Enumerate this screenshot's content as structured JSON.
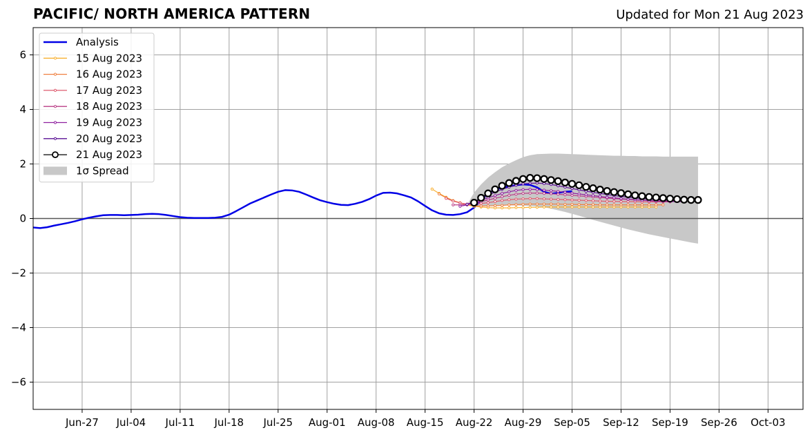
{
  "header": {
    "title": "PACIFIC/ NORTH AMERICA PATTERN",
    "updated": "Updated for Mon 21 Aug 2023"
  },
  "chart_data": {
    "type": "line",
    "title": "PACIFIC/ NORTH AMERICA PATTERN",
    "subtitle": "Updated for Mon 21 Aug 2023",
    "xlabel": "",
    "ylabel": "",
    "xlim": [
      "2023-06-20",
      "2023-10-08"
    ],
    "ylim": [
      -7,
      7
    ],
    "grid": true,
    "legend_position": "top-left",
    "x_ticks": [
      "Jun-27",
      "Jul-04",
      "Jul-11",
      "Jul-18",
      "Jul-25",
      "Aug-01",
      "Aug-08",
      "Aug-15",
      "Aug-22",
      "Aug-29",
      "Sep-05",
      "Sep-12",
      "Sep-19",
      "Sep-26",
      "Oct-03"
    ],
    "y_ticks": [
      "6",
      "4",
      "2",
      "0",
      "−2",
      "−4",
      "−6"
    ],
    "analysis": {
      "name": "Analysis",
      "color": "#0000e6",
      "start": "2023-06-20",
      "values": [
        -0.33,
        -0.35,
        -0.32,
        -0.26,
        -0.21,
        -0.16,
        -0.1,
        -0.03,
        0.03,
        0.08,
        0.12,
        0.13,
        0.13,
        0.12,
        0.13,
        0.14,
        0.16,
        0.17,
        0.16,
        0.13,
        0.09,
        0.05,
        0.03,
        0.02,
        0.02,
        0.02,
        0.03,
        0.06,
        0.14,
        0.27,
        0.41,
        0.55,
        0.66,
        0.77,
        0.88,
        0.98,
        1.04,
        1.03,
        0.98,
        0.88,
        0.77,
        0.67,
        0.6,
        0.54,
        0.5,
        0.49,
        0.54,
        0.61,
        0.71,
        0.84,
        0.94,
        0.95,
        0.92,
        0.85,
        0.77,
        0.63,
        0.46,
        0.3,
        0.19,
        0.14,
        0.13,
        0.16,
        0.23,
        0.4,
        0.66,
        0.92,
        1.06,
        1.13,
        1.18,
        1.22,
        1.25,
        1.23,
        1.14,
        0.98,
        0.91,
        0.94,
        0.98,
        1.0
      ]
    },
    "forecasts": [
      {
        "name": "15 Aug 2023",
        "color": "#f8b032",
        "start": "2023-08-16",
        "values": [
          1.08,
          0.92,
          0.78,
          0.66,
          0.58,
          0.5,
          0.45,
          0.42,
          0.4,
          0.39,
          0.39,
          0.39,
          0.4,
          0.4,
          0.41,
          0.41,
          0.42,
          0.42,
          0.42,
          0.42,
          0.42,
          0.42,
          0.42,
          0.42,
          0.42,
          0.42,
          0.42,
          0.42,
          0.42,
          0.42,
          0.42,
          0.42,
          0.42
        ]
      },
      {
        "name": "16 Aug 2023",
        "color": "#ef8040",
        "start": "2023-08-17",
        "values": [
          0.9,
          0.76,
          0.65,
          0.57,
          0.51,
          0.47,
          0.46,
          0.46,
          0.47,
          0.48,
          0.5,
          0.51,
          0.52,
          0.53,
          0.53,
          0.53,
          0.53,
          0.53,
          0.52,
          0.52,
          0.51,
          0.51,
          0.51,
          0.5,
          0.5,
          0.5,
          0.5,
          0.5,
          0.5,
          0.5,
          0.5,
          0.5,
          0.5
        ]
      },
      {
        "name": "17 Aug 2023",
        "color": "#de5a6e",
        "start": "2023-08-18",
        "values": [
          0.74,
          0.64,
          0.57,
          0.53,
          0.53,
          0.55,
          0.58,
          0.62,
          0.66,
          0.69,
          0.71,
          0.72,
          0.73,
          0.73,
          0.72,
          0.71,
          0.7,
          0.69,
          0.68,
          0.67,
          0.66,
          0.65,
          0.64,
          0.63,
          0.63,
          0.62,
          0.62,
          0.62,
          0.61,
          0.61,
          0.61,
          0.61,
          0.61
        ]
      },
      {
        "name": "18 Aug 2023",
        "color": "#ba3d86",
        "start": "2023-08-19",
        "values": [
          0.5,
          0.5,
          0.52,
          0.56,
          0.62,
          0.68,
          0.74,
          0.8,
          0.85,
          0.89,
          0.92,
          0.93,
          0.93,
          0.92,
          0.91,
          0.89,
          0.87,
          0.85,
          0.83,
          0.81,
          0.79,
          0.77,
          0.75,
          0.73,
          0.71,
          0.7,
          0.68,
          0.67,
          0.66,
          0.65,
          0.64,
          0.63,
          0.63
        ]
      },
      {
        "name": "19 Aug 2023",
        "color": "#8e1f9e",
        "start": "2023-08-20",
        "values": [
          0.45,
          0.5,
          0.58,
          0.67,
          0.76,
          0.84,
          0.92,
          0.98,
          1.03,
          1.06,
          1.07,
          1.06,
          1.04,
          1.02,
          0.99,
          0.96,
          0.93,
          0.9,
          0.87,
          0.84,
          0.81,
          0.78,
          0.76,
          0.73,
          0.71,
          0.69,
          0.67,
          0.65,
          0.64,
          0.63,
          0.62,
          0.62,
          0.62
        ]
      },
      {
        "name": "20 Aug 2023",
        "color": "#5a0f94",
        "start": "2023-08-21",
        "values": [
          0.52,
          0.62,
          0.74,
          0.86,
          0.97,
          1.07,
          1.15,
          1.22,
          1.27,
          1.29,
          1.3,
          1.28,
          1.25,
          1.2,
          1.15,
          1.1,
          1.05,
          1.0,
          0.96,
          0.92,
          0.88,
          0.84,
          0.81,
          0.78,
          0.75,
          0.73,
          0.71,
          0.69,
          0.68,
          0.67,
          0.66,
          0.66,
          0.66
        ]
      },
      {
        "name": "21 Aug 2023",
        "color": "#000000",
        "start": "2023-08-22",
        "values": [
          0.58,
          0.76,
          0.92,
          1.07,
          1.2,
          1.3,
          1.38,
          1.45,
          1.49,
          1.48,
          1.45,
          1.41,
          1.37,
          1.32,
          1.27,
          1.22,
          1.16,
          1.11,
          1.06,
          1.01,
          0.97,
          0.93,
          0.89,
          0.85,
          0.82,
          0.79,
          0.77,
          0.75,
          0.73,
          0.71,
          0.69,
          0.68,
          0.68
        ]
      }
    ],
    "spread": {
      "name": "1σ Spread",
      "color": "#c8c8c8",
      "start": "2023-08-21",
      "upper": [
        0.5,
        0.95,
        1.25,
        1.5,
        1.7,
        1.88,
        2.02,
        2.14,
        2.25,
        2.32,
        2.36,
        2.37,
        2.38,
        2.38,
        2.37,
        2.36,
        2.35,
        2.34,
        2.33,
        2.32,
        2.31,
        2.3,
        2.3,
        2.29,
        2.29,
        2.28,
        2.28,
        2.28,
        2.27,
        2.27,
        2.27,
        2.27,
        2.27,
        2.27
      ],
      "lower": [
        0.5,
        0.42,
        0.44,
        0.46,
        0.47,
        0.48,
        0.48,
        0.48,
        0.47,
        0.46,
        0.44,
        0.41,
        0.36,
        0.3,
        0.24,
        0.17,
        0.1,
        0.03,
        -0.05,
        -0.12,
        -0.19,
        -0.26,
        -0.33,
        -0.4,
        -0.46,
        -0.52,
        -0.58,
        -0.63,
        -0.68,
        -0.73,
        -0.78,
        -0.83,
        -0.88,
        -0.92
      ]
    }
  }
}
